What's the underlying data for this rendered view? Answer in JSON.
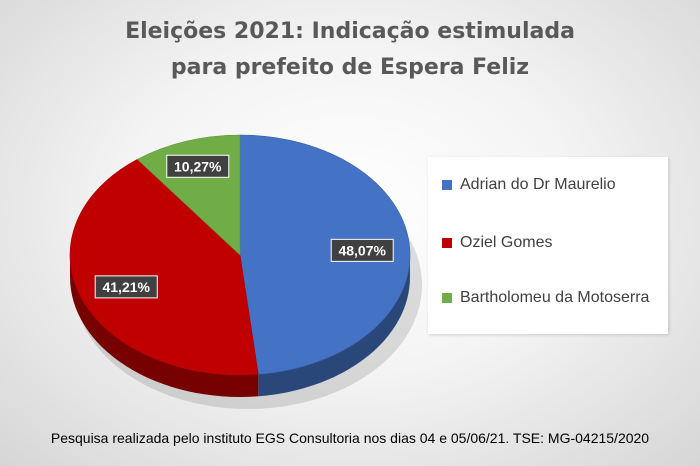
{
  "title_line1": "Eleições 2021: Indicação estimulada",
  "title_line2": "para prefeito de Espera Feliz",
  "footer": "Pesquisa realizada pelo instituto EGS Consultoria nos dias 04 e 05/06/21. TSE: MG-04215/2020",
  "chart_data": {
    "type": "pie",
    "title": "Eleições 2021: Indicação estimulada para prefeito de Espera Feliz",
    "legend_position": "right",
    "slices": [
      {
        "label": "Adrian do Dr Maurelio",
        "value": 48.07,
        "data_label": "48,07%",
        "color": "#4472c4"
      },
      {
        "label": "Oziel Gomes",
        "value": 41.21,
        "data_label": "41,21%",
        "color": "#c00000"
      },
      {
        "label": "Bartholomeu da Motoserra",
        "value": 10.27,
        "data_label": "10,27%",
        "color": "#70ad47"
      }
    ]
  }
}
